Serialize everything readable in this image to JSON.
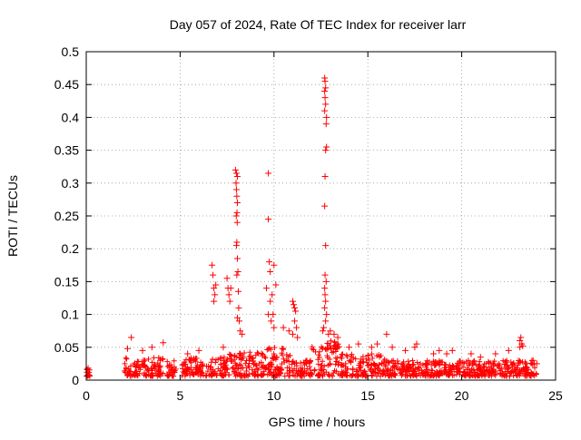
{
  "chart_data": {
    "type": "scatter",
    "title": "Day 057 of 2024, Rate Of TEC Index for receiver larr",
    "xlabel": "GPS time / hours",
    "ylabel": "ROTI / TECUs",
    "xlim": [
      0,
      25
    ],
    "ylim": [
      0,
      0.5
    ],
    "xticks": [
      0,
      5,
      10,
      15,
      20,
      25
    ],
    "yticks": [
      0,
      0.05,
      0.1,
      0.15,
      0.2,
      0.25,
      0.3,
      0.35,
      0.4,
      0.45,
      0.5
    ],
    "xtick_labels": [
      "0",
      "5",
      "10",
      "15",
      "20",
      "25"
    ],
    "ytick_labels": [
      "0",
      "0.05",
      "0.1",
      "0.15",
      "0.2",
      "0.25",
      "0.3",
      "0.35",
      "0.4",
      "0.45",
      "0.5"
    ],
    "grid": true,
    "marker": "+",
    "color": "#ff0000",
    "background_bands": [
      {
        "x_start": 0.0,
        "x_end": 0.2,
        "y_max": 0.02
      },
      {
        "x_start": 2.0,
        "x_end": 4.1,
        "y_max": 0.035
      },
      {
        "x_start": 4.3,
        "x_end": 4.8,
        "y_max": 0.03
      },
      {
        "x_start": 5.1,
        "x_end": 7.5,
        "y_max": 0.035
      },
      {
        "x_start": 7.5,
        "x_end": 9.5,
        "y_max": 0.045
      },
      {
        "x_start": 9.5,
        "x_end": 11.0,
        "y_max": 0.05
      },
      {
        "x_start": 11.0,
        "x_end": 12.0,
        "y_max": 0.03
      },
      {
        "x_start": 12.0,
        "x_end": 13.5,
        "y_max": 0.06
      },
      {
        "x_start": 13.5,
        "x_end": 16.0,
        "y_max": 0.04
      },
      {
        "x_start": 16.0,
        "x_end": 20.0,
        "y_max": 0.03
      },
      {
        "x_start": 20.0,
        "x_end": 24.0,
        "y_max": 0.03
      }
    ],
    "series": [
      {
        "points": [
          [
            0.05,
            0.012
          ],
          [
            0.1,
            0.018
          ],
          [
            0.12,
            0.008
          ],
          [
            2.4,
            0.065
          ],
          [
            2.2,
            0.048
          ],
          [
            3.5,
            0.05
          ],
          [
            3.0,
            0.045
          ],
          [
            4.1,
            0.057
          ],
          [
            5.4,
            0.04
          ],
          [
            6.0,
            0.045
          ],
          [
            6.7,
            0.175
          ],
          [
            6.75,
            0.16
          ],
          [
            6.8,
            0.14
          ],
          [
            6.8,
            0.12
          ],
          [
            6.85,
            0.13
          ],
          [
            6.9,
            0.145
          ],
          [
            7.5,
            0.155
          ],
          [
            7.55,
            0.14
          ],
          [
            7.6,
            0.13
          ],
          [
            7.65,
            0.12
          ],
          [
            7.7,
            0.14
          ],
          [
            7.3,
            0.05
          ],
          [
            7.95,
            0.32
          ],
          [
            8.0,
            0.315
          ],
          [
            8.05,
            0.31
          ],
          [
            7.98,
            0.3
          ],
          [
            8.0,
            0.29
          ],
          [
            8.02,
            0.28
          ],
          [
            8.05,
            0.27
          ],
          [
            8.03,
            0.255
          ],
          [
            7.99,
            0.25
          ],
          [
            8.04,
            0.24
          ],
          [
            8.02,
            0.21
          ],
          [
            8.0,
            0.205
          ],
          [
            8.05,
            0.185
          ],
          [
            8.08,
            0.165
          ],
          [
            8.02,
            0.16
          ],
          [
            8.1,
            0.135
          ],
          [
            8.12,
            0.11
          ],
          [
            8.05,
            0.095
          ],
          [
            8.15,
            0.09
          ],
          [
            8.2,
            0.075
          ],
          [
            8.3,
            0.07
          ],
          [
            9.7,
            0.315
          ],
          [
            9.7,
            0.245
          ],
          [
            9.75,
            0.18
          ],
          [
            9.8,
            0.165
          ],
          [
            10.0,
            0.175
          ],
          [
            9.6,
            0.14
          ],
          [
            9.8,
            0.12
          ],
          [
            9.9,
            0.13
          ],
          [
            10.1,
            0.145
          ],
          [
            9.7,
            0.1
          ],
          [
            9.95,
            0.1
          ],
          [
            9.85,
            0.09
          ],
          [
            10.0,
            0.08
          ],
          [
            10.5,
            0.08
          ],
          [
            10.8,
            0.075
          ],
          [
            11.0,
            0.12
          ],
          [
            11.05,
            0.115
          ],
          [
            11.1,
            0.11
          ],
          [
            11.15,
            0.105
          ],
          [
            11.1,
            0.09
          ],
          [
            11.2,
            0.08
          ],
          [
            11.0,
            0.07
          ],
          [
            11.25,
            0.065
          ],
          [
            12.7,
            0.46
          ],
          [
            12.72,
            0.455
          ],
          [
            12.75,
            0.445
          ],
          [
            12.7,
            0.44
          ],
          [
            12.72,
            0.43
          ],
          [
            12.75,
            0.42
          ],
          [
            12.7,
            0.41
          ],
          [
            12.8,
            0.4
          ],
          [
            12.78,
            0.39
          ],
          [
            12.8,
            0.355
          ],
          [
            12.75,
            0.35
          ],
          [
            12.72,
            0.31
          ],
          [
            12.7,
            0.265
          ],
          [
            12.75,
            0.205
          ],
          [
            12.72,
            0.16
          ],
          [
            12.78,
            0.15
          ],
          [
            12.7,
            0.14
          ],
          [
            12.72,
            0.13
          ],
          [
            12.75,
            0.12
          ],
          [
            12.7,
            0.11
          ],
          [
            12.8,
            0.1
          ],
          [
            12.75,
            0.09
          ],
          [
            12.65,
            0.08
          ],
          [
            12.6,
            0.075
          ],
          [
            12.9,
            0.07
          ],
          [
            13.0,
            0.075
          ],
          [
            13.2,
            0.07
          ],
          [
            13.4,
            0.065
          ],
          [
            14.0,
            0.05
          ],
          [
            14.5,
            0.055
          ],
          [
            15.2,
            0.05
          ],
          [
            15.5,
            0.055
          ],
          [
            16.0,
            0.07
          ],
          [
            16.3,
            0.05
          ],
          [
            17.0,
            0.045
          ],
          [
            17.6,
            0.055
          ],
          [
            17.5,
            0.05
          ],
          [
            18.5,
            0.04
          ],
          [
            18.8,
            0.045
          ],
          [
            19.2,
            0.04
          ],
          [
            19.5,
            0.045
          ],
          [
            20.5,
            0.04
          ],
          [
            21.0,
            0.035
          ],
          [
            21.8,
            0.04
          ],
          [
            22.5,
            0.045
          ],
          [
            23.1,
            0.06
          ],
          [
            23.15,
            0.065
          ],
          [
            23.2,
            0.055
          ],
          [
            23.1,
            0.05
          ],
          [
            23.25,
            0.052
          ],
          [
            23.8,
            0.03
          ],
          [
            24.0,
            0.025
          ]
        ]
      }
    ]
  }
}
